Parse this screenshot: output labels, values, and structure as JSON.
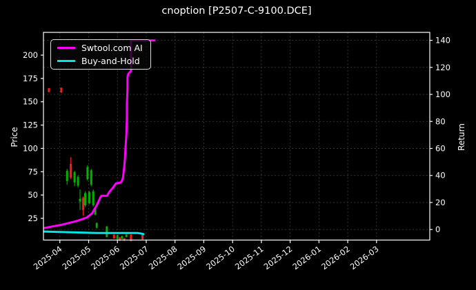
{
  "window": {
    "title": "cnoption [P2507-C-9100.DCE]"
  },
  "chart_data": {
    "type": "candlestick_with_lines",
    "title": "cnoption [P2507-C-9100.DCE]",
    "xlabel": "",
    "ylabel_left": "Price",
    "ylabel_right": "Return",
    "legend_position": "upper left",
    "grid": "dashed",
    "colors": {
      "background": "#000000",
      "text": "#ffffff",
      "spine": "#ffffff",
      "grid": "#3a3a3a",
      "candle_up": "#00b300",
      "candle_down": "#ff1a1a",
      "ai_line": "#ff00ff",
      "buyhold_line": "#00e5e5"
    },
    "x_tick_labels": [
      "2025-04",
      "2025-05",
      "2025-06",
      "2025-07",
      "2025-08",
      "2025-09",
      "2025-10",
      "2025-11",
      "2025-12",
      "2026-01",
      "2026-02",
      "2026-03"
    ],
    "x_range_months": [
      -0.57,
      12.85
    ],
    "left_axis": {
      "label": "Price",
      "ticks": [
        25,
        50,
        75,
        100,
        125,
        150,
        175,
        200
      ],
      "range": [
        1.7,
        224.4
      ]
    },
    "right_axis": {
      "label": "Return",
      "ticks": [
        0,
        20,
        40,
        60,
        80,
        100,
        120,
        140
      ],
      "range": [
        -7.8,
        145.9
      ]
    },
    "series": [
      {
        "name": "Swtool.com AI",
        "color": "#ff00ff",
        "axis": "right",
        "points": [
          [
            -0.57,
            1.0
          ],
          [
            0.08,
            3.6
          ],
          [
            0.56,
            6.1
          ],
          [
            0.92,
            8.7
          ],
          [
            1.11,
            11.7
          ],
          [
            1.28,
            17.9
          ],
          [
            1.4,
            23.5
          ],
          [
            1.44,
            25.0
          ],
          [
            1.64,
            25.0
          ],
          [
            1.71,
            27.6
          ],
          [
            1.83,
            30.6
          ],
          [
            1.95,
            34.2
          ],
          [
            2.11,
            34.7
          ],
          [
            2.16,
            36.2
          ],
          [
            2.19,
            38.3
          ],
          [
            2.23,
            44.9
          ],
          [
            2.26,
            52.6
          ],
          [
            2.28,
            60.2
          ],
          [
            2.31,
            70.4
          ],
          [
            2.33,
            83.2
          ],
          [
            2.33,
            93.4
          ],
          [
            2.35,
            103.6
          ],
          [
            2.35,
            112.8
          ],
          [
            2.38,
            115.3
          ],
          [
            2.47,
            117.3
          ],
          [
            2.47,
            129.1
          ],
          [
            2.47,
            140.0
          ],
          [
            3.31,
            140.0
          ]
        ]
      },
      {
        "name": "Buy-and-Hold",
        "color": "#00e5e5",
        "axis": "right",
        "points": [
          [
            -0.57,
            -1.5
          ],
          [
            0.32,
            -2.0
          ],
          [
            1.28,
            -2.6
          ],
          [
            2.0,
            -2.6
          ],
          [
            2.71,
            -2.6
          ],
          [
            2.86,
            -3.1
          ],
          [
            2.93,
            -3.6
          ]
        ]
      }
    ],
    "candles": [
      [
        -0.38,
        160.0,
        160.5,
        164.5,
        164.8,
        "d"
      ],
      [
        0.05,
        159.5,
        160.0,
        165.0,
        165.3,
        "d"
      ],
      [
        0.25,
        61.0,
        65.0,
        76.0,
        78.0,
        "u"
      ],
      [
        0.38,
        67.0,
        68.5,
        83.5,
        90.5,
        "d"
      ],
      [
        0.51,
        59.5,
        63.5,
        74.5,
        76.0,
        "u"
      ],
      [
        0.63,
        58.0,
        60.0,
        69.5,
        71.0,
        "u"
      ],
      [
        0.7,
        34.0,
        43.0,
        46.0,
        56.0,
        "u"
      ],
      [
        0.81,
        28.0,
        34.0,
        47.0,
        48.5,
        "d"
      ],
      [
        0.88,
        37.0,
        39.0,
        52.0,
        54.0,
        "u"
      ],
      [
        0.96,
        65.5,
        67.0,
        80.0,
        82.0,
        "u"
      ],
      [
        1.02,
        40.0,
        41.0,
        53.0,
        54.5,
        "u"
      ],
      [
        1.09,
        59.5,
        61.0,
        76.5,
        78.0,
        "u"
      ],
      [
        1.16,
        37.5,
        39.0,
        54.0,
        56.0,
        "u"
      ],
      [
        1.23,
        28.0,
        29.0,
        35.0,
        36.0,
        "u"
      ],
      [
        1.28,
        14.0,
        15.0,
        20.0,
        20.5,
        "u"
      ],
      [
        1.63,
        4.5,
        5.0,
        16.0,
        17.0,
        "u"
      ],
      [
        1.88,
        3.0,
        3.5,
        7.5,
        8.0,
        "d"
      ],
      [
        2.0,
        2.0,
        2.5,
        7.0,
        7.5,
        "u"
      ],
      [
        2.08,
        0.5,
        1.0,
        4.5,
        5.0,
        "d"
      ],
      [
        2.16,
        2.5,
        3.0,
        6.0,
        6.5,
        "u"
      ],
      [
        2.24,
        0.5,
        1.0,
        3.5,
        4.0,
        "d"
      ],
      [
        2.31,
        4.5,
        5.0,
        7.5,
        8.0,
        "u"
      ],
      [
        2.47,
        0.2,
        0.5,
        7.5,
        8.0,
        "d"
      ],
      [
        2.87,
        2.0,
        2.5,
        9.0,
        9.5,
        "d"
      ]
    ]
  }
}
